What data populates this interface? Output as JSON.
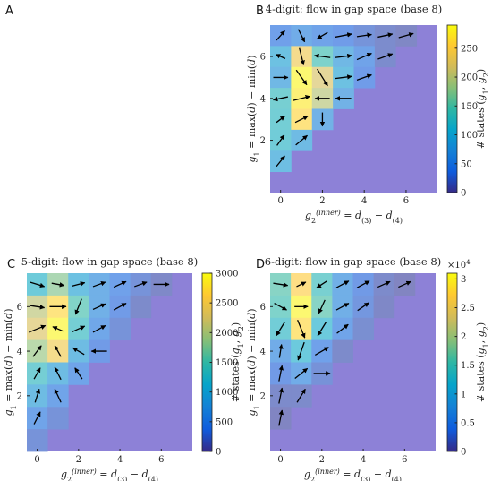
{
  "chart_data": [
    {
      "panel": "A",
      "type": "blank"
    },
    {
      "panel": "B",
      "type": "heatmap",
      "title": "4-digit: flow in gap space (base 8)",
      "xlabel": "g2(inner) = d(3) − d(4)",
      "ylabel": "g1 = max(d) − min(d)",
      "colorbar_label": "# states (g1, g2)",
      "x_ticks": [
        "0",
        "2",
        "4",
        "6"
      ],
      "y_ticks": [
        "2",
        "4",
        "6"
      ],
      "cbar_ticks": [
        "0",
        "50",
        "100",
        "150",
        "200",
        "250"
      ],
      "cbar_multiplier": "",
      "xlim": [
        -0.5,
        7.5
      ],
      "ylim": [
        -0.5,
        7.5
      ],
      "cmax": 290,
      "background_color": "#8d81d7",
      "cells": [
        [
          0,
          7,
          40
        ],
        [
          1,
          7,
          60
        ],
        [
          2,
          7,
          45
        ],
        [
          3,
          7,
          35
        ],
        [
          4,
          7,
          25
        ],
        [
          5,
          7,
          15
        ],
        [
          6,
          7,
          10
        ],
        [
          0,
          6,
          95
        ],
        [
          1,
          6,
          240
        ],
        [
          2,
          6,
          140
        ],
        [
          3,
          6,
          80
        ],
        [
          4,
          6,
          45
        ],
        [
          5,
          6,
          15
        ],
        [
          0,
          5,
          80
        ],
        [
          1,
          5,
          285
        ],
        [
          2,
          5,
          220
        ],
        [
          3,
          5,
          95
        ],
        [
          4,
          5,
          35
        ],
        [
          0,
          4,
          130
        ],
        [
          1,
          4,
          275
        ],
        [
          2,
          4,
          200
        ],
        [
          3,
          4,
          70
        ],
        [
          0,
          3,
          125
        ],
        [
          1,
          3,
          260
        ],
        [
          2,
          3,
          70
        ],
        [
          0,
          2,
          120
        ],
        [
          1,
          2,
          85
        ],
        [
          0,
          1,
          90
        ]
      ],
      "arrows": [
        [
          0,
          7,
          0.4,
          0.45
        ],
        [
          1,
          7,
          0.3,
          -0.6
        ],
        [
          2,
          7,
          -0.5,
          -0.3
        ],
        [
          3,
          7,
          0.8,
          0.15
        ],
        [
          4,
          7,
          0.7,
          0.1
        ],
        [
          5,
          7,
          0.7,
          0.15
        ],
        [
          6,
          7,
          0.7,
          0.2
        ],
        [
          0,
          6,
          -0.45,
          0.2
        ],
        [
          1,
          6,
          0.2,
          -0.8
        ],
        [
          2,
          6,
          -0.75,
          0.1
        ],
        [
          3,
          6,
          0.8,
          0.1
        ],
        [
          4,
          6,
          0.7,
          0.3
        ],
        [
          5,
          6,
          0.7,
          0.25
        ],
        [
          0,
          5,
          0.7,
          0
        ],
        [
          1,
          5,
          0.5,
          -0.7
        ],
        [
          2,
          5,
          0.5,
          -0.8
        ],
        [
          3,
          5,
          0.8,
          0.1
        ],
        [
          4,
          5,
          0.7,
          0.25
        ],
        [
          0,
          4,
          -0.7,
          -0.15
        ],
        [
          1,
          4,
          0.8,
          0.2
        ],
        [
          2,
          4,
          -0.7,
          0
        ],
        [
          3,
          4,
          -0.75,
          0
        ],
        [
          0,
          3,
          0.4,
          0.3
        ],
        [
          1,
          3,
          0.6,
          0.3
        ],
        [
          2,
          3,
          0,
          -0.65
        ],
        [
          0,
          2,
          0.35,
          0.5
        ],
        [
          1,
          2,
          0.55,
          0.45
        ],
        [
          0,
          1,
          0.4,
          0.5
        ]
      ]
    },
    {
      "panel": "C",
      "type": "heatmap",
      "title": "5-digit: flow in gap space (base 8)",
      "xlabel": "g2(inner) = d(3) − d(4)",
      "ylabel": "g1 = max(d) − min(d)",
      "colorbar_label": "# states (g1, g2)",
      "x_ticks": [
        "0",
        "2",
        "4",
        "6"
      ],
      "y_ticks": [
        "2",
        "4",
        "6"
      ],
      "cbar_ticks": [
        "0",
        "500",
        "1000",
        "1500",
        "2000",
        "2500",
        "3000"
      ],
      "cbar_multiplier": "",
      "xlim": [
        -0.5,
        7.5
      ],
      "ylim": [
        -0.5,
        7.5
      ],
      "cmax": 3000,
      "background_color": "#8d81d7",
      "cells": [
        [
          0,
          7,
          1200
        ],
        [
          1,
          7,
          1800
        ],
        [
          2,
          7,
          1000
        ],
        [
          3,
          7,
          700
        ],
        [
          4,
          7,
          450
        ],
        [
          5,
          7,
          250
        ],
        [
          6,
          7,
          120
        ],
        [
          0,
          6,
          2100
        ],
        [
          1,
          6,
          2700
        ],
        [
          2,
          6,
          1500
        ],
        [
          3,
          6,
          700
        ],
        [
          4,
          6,
          350
        ],
        [
          5,
          6,
          150
        ],
        [
          0,
          5,
          2300
        ],
        [
          1,
          5,
          2950
        ],
        [
          2,
          5,
          1300
        ],
        [
          3,
          5,
          550
        ],
        [
          4,
          5,
          250
        ],
        [
          0,
          4,
          1900
        ],
        [
          1,
          4,
          2500
        ],
        [
          2,
          4,
          900
        ],
        [
          3,
          4,
          350
        ],
        [
          0,
          3,
          1300
        ],
        [
          1,
          3,
          900
        ],
        [
          2,
          3,
          500
        ],
        [
          0,
          2,
          900
        ],
        [
          1,
          2,
          500
        ],
        [
          0,
          1,
          500
        ],
        [
          1,
          1,
          250
        ],
        [
          0,
          0,
          250
        ]
      ],
      "arrows": [
        [
          0,
          7,
          0.7,
          -0.2
        ],
        [
          1,
          7,
          0.6,
          -0.1
        ],
        [
          2,
          7,
          0.6,
          0.15
        ],
        [
          3,
          7,
          0.6,
          0.2
        ],
        [
          4,
          7,
          0.6,
          0.25
        ],
        [
          5,
          7,
          0.6,
          0.2
        ],
        [
          6,
          7,
          0.75,
          0
        ],
        [
          0,
          6,
          0.7,
          -0.1
        ],
        [
          1,
          6,
          0.8,
          0
        ],
        [
          2,
          6,
          -0.3,
          -0.7
        ],
        [
          3,
          6,
          0.6,
          0.25
        ],
        [
          4,
          6,
          0.6,
          0.3
        ],
        [
          0,
          5,
          0.8,
          0.3
        ],
        [
          1,
          5,
          -0.5,
          0.2
        ],
        [
          2,
          5,
          0.6,
          0.25
        ],
        [
          3,
          5,
          0.6,
          0.3
        ],
        [
          0,
          4,
          0.4,
          0.5
        ],
        [
          1,
          4,
          -0.3,
          0.5
        ],
        [
          2,
          4,
          -0.55,
          0.3
        ],
        [
          3,
          4,
          -0.75,
          0
        ],
        [
          0,
          3,
          0.3,
          0.5
        ],
        [
          1,
          3,
          -0.3,
          0.55
        ],
        [
          2,
          3,
          -0.35,
          0.5
        ],
        [
          0,
          2,
          0.2,
          0.6
        ],
        [
          1,
          2,
          -0.3,
          0.6
        ],
        [
          0,
          1,
          0.3,
          0.55
        ]
      ]
    },
    {
      "panel": "D",
      "type": "heatmap",
      "title": "6-digit: flow in gap space (base 8)",
      "xlabel": "g2(inner) = d(3) − d(4)",
      "ylabel": "g1 = max(d) − min(d)",
      "colorbar_label": "# states (g1, g2)",
      "x_ticks": [
        "0",
        "2",
        "4",
        "6"
      ],
      "y_ticks": [
        "2",
        "4",
        "6"
      ],
      "cbar_ticks": [
        "0",
        "0.5",
        "1",
        "1.5",
        "2",
        "2.5",
        "3"
      ],
      "cbar_multiplier": "×10",
      "cbar_multiplier_exp": "4",
      "xlim": [
        -0.5,
        7.5
      ],
      "ylim": [
        -0.5,
        7.5
      ],
      "cmax": 31000,
      "background_color": "#8d81d7",
      "cells": [
        [
          0,
          7,
          16000
        ],
        [
          1,
          7,
          27000
        ],
        [
          2,
          7,
          14000
        ],
        [
          3,
          7,
          7000
        ],
        [
          4,
          7,
          3500
        ],
        [
          5,
          7,
          1500
        ],
        [
          6,
          7,
          700
        ],
        [
          0,
          6,
          15000
        ],
        [
          1,
          6,
          30500
        ],
        [
          2,
          6,
          16000
        ],
        [
          3,
          6,
          7000
        ],
        [
          4,
          6,
          3000
        ],
        [
          5,
          6,
          1200
        ],
        [
          0,
          5,
          13000
        ],
        [
          1,
          5,
          28000
        ],
        [
          2,
          5,
          12000
        ],
        [
          3,
          5,
          5000
        ],
        [
          4,
          5,
          2000
        ],
        [
          0,
          4,
          6500
        ],
        [
          1,
          4,
          12000
        ],
        [
          2,
          4,
          4500
        ],
        [
          3,
          4,
          1500
        ],
        [
          0,
          3,
          3500
        ],
        [
          1,
          3,
          6500
        ],
        [
          2,
          3,
          2500
        ],
        [
          0,
          2,
          1500
        ],
        [
          1,
          2,
          1500
        ],
        [
          0,
          1,
          800
        ]
      ],
      "arrows": [
        [
          0,
          7,
          0.7,
          -0.1
        ],
        [
          1,
          7,
          0.45,
          0.2
        ],
        [
          2,
          7,
          -0.5,
          -0.3
        ],
        [
          3,
          7,
          0.6,
          0.3
        ],
        [
          4,
          7,
          0.6,
          0.3
        ],
        [
          5,
          7,
          0.6,
          0.25
        ],
        [
          6,
          7,
          0.6,
          0.25
        ],
        [
          0,
          6,
          0.6,
          -0.3
        ],
        [
          1,
          6,
          0.65,
          0
        ],
        [
          2,
          6,
          -0.3,
          -0.6
        ],
        [
          3,
          6,
          0.6,
          0.3
        ],
        [
          4,
          6,
          0.55,
          0.35
        ],
        [
          0,
          5,
          -0.4,
          -0.6
        ],
        [
          1,
          5,
          0.35,
          -0.8
        ],
        [
          2,
          5,
          -0.4,
          -0.6
        ],
        [
          3,
          5,
          0.55,
          0.4
        ],
        [
          0,
          4,
          0.1,
          0.6
        ],
        [
          1,
          4,
          -0.3,
          -0.8
        ],
        [
          2,
          4,
          0.65,
          0.35
        ],
        [
          0,
          3,
          0.15,
          0.7
        ],
        [
          1,
          3,
          0.6,
          0.45
        ],
        [
          2,
          3,
          0.8,
          0
        ],
        [
          0,
          2,
          0.15,
          0.7
        ],
        [
          1,
          2,
          0.4,
          0.6
        ],
        [
          0,
          1,
          0.15,
          0.7
        ]
      ]
    }
  ]
}
